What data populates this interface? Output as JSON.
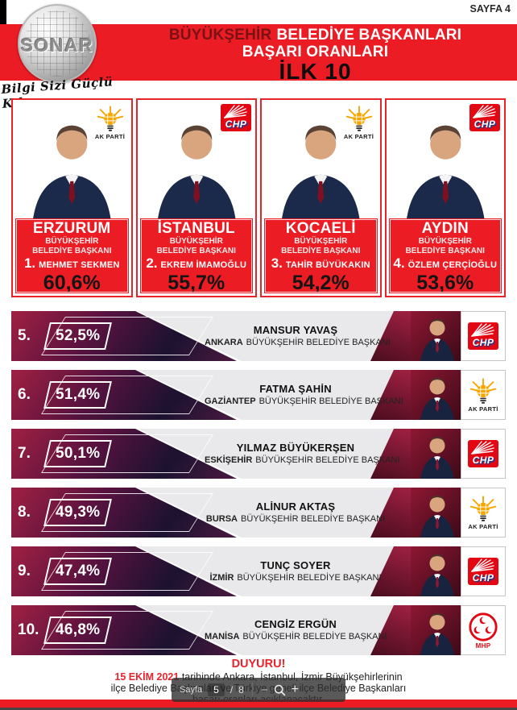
{
  "page": {
    "sayfa_label": "SAYFA 4"
  },
  "logo": {
    "text": "SONAR",
    "slogan": "Bilgi Sizi Güçlü Kılar"
  },
  "header": {
    "title_word_dark": "BÜYÜKŞEHİR",
    "title_word_rest": "BELEDİYE BAŞKANLARI",
    "title_line2": "BAŞARI ORANLARI",
    "title_line3": "İLK 10"
  },
  "cards": [
    {
      "rank": "1.",
      "city": "ERZURUM",
      "org_line1": "BÜYÜKŞEHİR",
      "org_line2": "BELEDİYE BAŞKANI",
      "name": "MEHMET SEKMEN",
      "pct": "60,6%",
      "party": "AK PARTİ"
    },
    {
      "rank": "2.",
      "city": "İSTANBUL",
      "org_line1": "BÜYÜKŞEHİR",
      "org_line2": "BELEDİYE BAŞKANI",
      "name": "EKREM İMAMOĞLU",
      "pct": "55,7%",
      "party": "CHP"
    },
    {
      "rank": "3.",
      "city": "KOCAELİ",
      "org_line1": "BÜYÜKŞEHİR",
      "org_line2": "BELEDİYE BAŞKANI",
      "name": "TAHİR BÜYÜKAKIN",
      "pct": "54,2%",
      "party": "AK PARTİ"
    },
    {
      "rank": "4.",
      "city": "AYDIN",
      "org_line1": "BÜYÜKŞEHİR",
      "org_line2": "BELEDİYE BAŞKANI",
      "name": "ÖZLEM ÇERÇİOĞLU",
      "pct": "53,6%",
      "party": "CHP"
    }
  ],
  "rows": [
    {
      "rank": "5.",
      "pct": "52,5%",
      "name": "MANSUR YAVAŞ",
      "city": "ANKARA",
      "title": "BÜYÜKŞEHİR BELEDİYE BAŞKANI",
      "party": "CHP"
    },
    {
      "rank": "6.",
      "pct": "51,4%",
      "name": "FATMA ŞAHİN",
      "city": "GAZİANTEP",
      "title": "BÜYÜKŞEHİR BELEDİYE BAŞKANI",
      "party": "AK PARTİ"
    },
    {
      "rank": "7.",
      "pct": "50,1%",
      "name": "YILMAZ BÜYÜKERŞEN",
      "city": "ESKİŞEHİR",
      "title": "BÜYÜKŞEHİR BELEDİYE BAŞKANI",
      "party": "CHP"
    },
    {
      "rank": "8.",
      "pct": "49,3%",
      "name": "ALİNUR AKTAŞ",
      "city": "BURSA",
      "title": "BÜYÜKŞEHİR BELEDİYE BAŞKANI",
      "party": "AK PARTİ"
    },
    {
      "rank": "9.",
      "pct": "47,4%",
      "name": "TUNÇ SOYER",
      "city": "İZMİR",
      "title": "BÜYÜKŞEHİR BELEDİYE BAŞKANI",
      "party": "CHP"
    },
    {
      "rank": "10.",
      "pct": "46,8%",
      "name": "CENGİZ ERGÜN",
      "city": "MANİSA",
      "title": "BÜYÜKŞEHİR BELEDİYE BAŞKANI",
      "party": "MHP"
    }
  ],
  "announcement": {
    "title": "DUYURU!",
    "line1_highlight": "15 EKİM 2021",
    "line1_rest": " tarihinde Ankara, İstanbul, İzmir Büyükşehirlerinin",
    "line2": "ilçe Belediye Başkanları ve Türkiye geneli ilçe Belediye Başkanları",
    "line3": "başarı oranları açıklanacaktır."
  },
  "pdf_toolbar": {
    "page_label": "Sayfa",
    "current_page": "5",
    "separator": "/",
    "total_pages": "8",
    "zoom_out_label": "−",
    "zoom_in_label": "+"
  },
  "colors": {
    "primary_red": "#ec1c24",
    "title_dark_red": "#7a1215",
    "akparti_orange": "#f7a600",
    "chp_red": "#e30613",
    "mhp_red": "#e30613",
    "row_gray": "#e9e9eb"
  }
}
